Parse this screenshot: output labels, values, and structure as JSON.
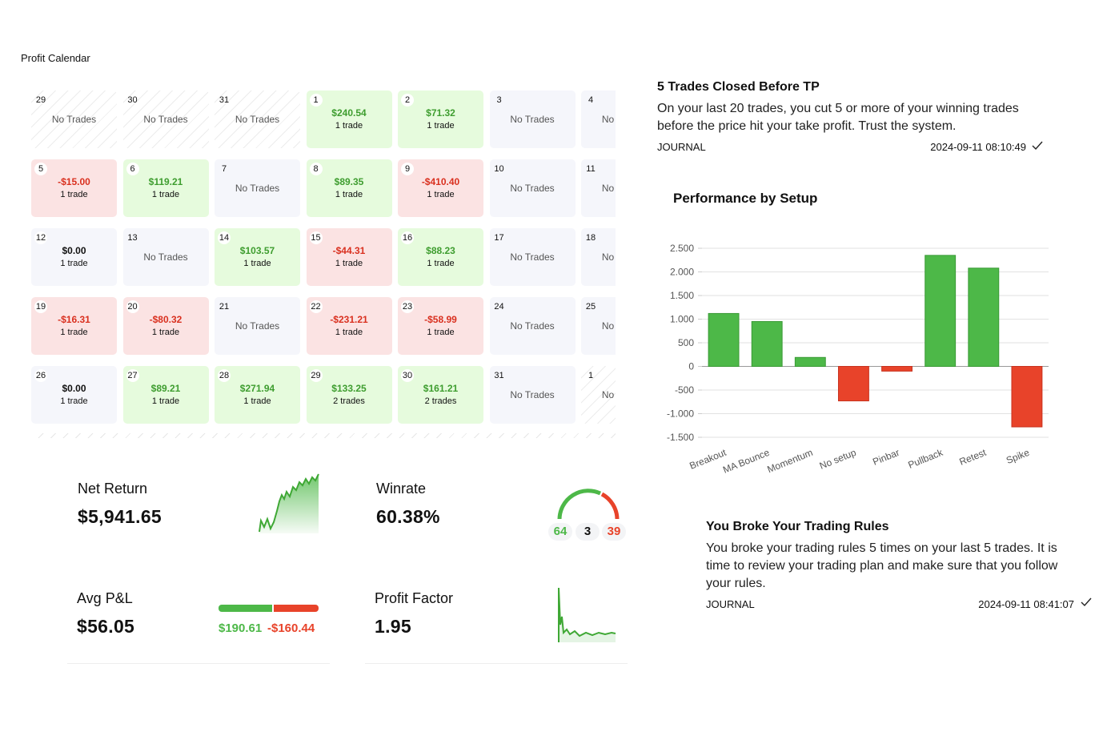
{
  "page_title": "Profit Calendar",
  "calendar": {
    "weeks": [
      [
        {
          "day": 29,
          "status": "outside",
          "text": "No Trades"
        },
        {
          "day": 30,
          "status": "outside",
          "text": "No Trades"
        },
        {
          "day": 31,
          "status": "outside",
          "text": "No Trades"
        },
        {
          "day": 1,
          "status": "win",
          "pnl": "$240.54",
          "trades": "1 trade"
        },
        {
          "day": 2,
          "status": "win",
          "pnl": "$71.32",
          "trades": "1 trade"
        },
        {
          "day": 3,
          "status": "none",
          "text": "No Trades"
        },
        {
          "day": 4,
          "status": "none",
          "text": "No Trades"
        }
      ],
      [
        {
          "day": 5,
          "status": "loss",
          "pnl": "-$15.00",
          "trades": "1 trade"
        },
        {
          "day": 6,
          "status": "win",
          "pnl": "$119.21",
          "trades": "1 trade"
        },
        {
          "day": 7,
          "status": "none",
          "text": "No Trades"
        },
        {
          "day": 8,
          "status": "win",
          "pnl": "$89.35",
          "trades": "1 trade"
        },
        {
          "day": 9,
          "status": "loss",
          "pnl": "-$410.40",
          "trades": "1 trade"
        },
        {
          "day": 10,
          "status": "none",
          "text": "No Trades"
        },
        {
          "day": 11,
          "status": "none",
          "text": "No Trades"
        }
      ],
      [
        {
          "day": 12,
          "status": "flat",
          "pnl": "$0.00",
          "trades": "1 trade"
        },
        {
          "day": 13,
          "status": "none",
          "text": "No Trades"
        },
        {
          "day": 14,
          "status": "win",
          "pnl": "$103.57",
          "trades": "1 trade"
        },
        {
          "day": 15,
          "status": "loss",
          "pnl": "-$44.31",
          "trades": "1 trade"
        },
        {
          "day": 16,
          "status": "win",
          "pnl": "$88.23",
          "trades": "1 trade"
        },
        {
          "day": 17,
          "status": "none",
          "text": "No Trades"
        },
        {
          "day": 18,
          "status": "none",
          "text": "No Trades"
        }
      ],
      [
        {
          "day": 19,
          "status": "loss",
          "pnl": "-$16.31",
          "trades": "1 trade"
        },
        {
          "day": 20,
          "status": "loss",
          "pnl": "-$80.32",
          "trades": "1 trade"
        },
        {
          "day": 21,
          "status": "none",
          "text": "No Trades"
        },
        {
          "day": 22,
          "status": "loss",
          "pnl": "-$231.21",
          "trades": "1 trade"
        },
        {
          "day": 23,
          "status": "loss",
          "pnl": "-$58.99",
          "trades": "1 trade"
        },
        {
          "day": 24,
          "status": "none",
          "text": "No Trades"
        },
        {
          "day": 25,
          "status": "none",
          "text": "No Trades"
        }
      ],
      [
        {
          "day": 26,
          "status": "flat",
          "pnl": "$0.00",
          "trades": "1 trade"
        },
        {
          "day": 27,
          "status": "win",
          "pnl": "$89.21",
          "trades": "1 trade"
        },
        {
          "day": 28,
          "status": "win",
          "pnl": "$271.94",
          "trades": "1 trade"
        },
        {
          "day": 29,
          "status": "win",
          "pnl": "$133.25",
          "trades": "2 trades"
        },
        {
          "day": 30,
          "status": "win",
          "pnl": "$161.21",
          "trades": "2 trades"
        },
        {
          "day": 31,
          "status": "none",
          "text": "No Trades"
        },
        {
          "day": 1,
          "status": "outside",
          "text": "No Trades"
        }
      ]
    ]
  },
  "stats": {
    "net_return": {
      "label": "Net Return",
      "value": "$5,941.65"
    },
    "winrate": {
      "label": "Winrate",
      "value": "60.38%",
      "wins": "64",
      "breakeven": "3",
      "losses": "39"
    },
    "avg_pnl": {
      "label": "Avg P&L",
      "value": "$56.05",
      "avg_win": "$190.61",
      "avg_loss": "-$160.44"
    },
    "profit_factor": {
      "label": "Profit Factor",
      "value": "1.95"
    }
  },
  "notes": [
    {
      "title": "5 Trades Closed Before TP",
      "body": "On your last 20 trades, you cut 5 or more of your winning trades before the price hit your take profit. Trust the system.",
      "tag": "JOURNAL",
      "time": "2024-09-11 08:10:49"
    },
    {
      "title": "You Broke Your Trading Rules",
      "body": "You broke your trading rules 5 times on your last 5 trades. It is time to review your trading plan and make sure that you follow your rules.",
      "tag": "JOURNAL",
      "time": "2024-09-11 08:41:07"
    }
  ],
  "chart_data": {
    "type": "bar",
    "title": "Performance by Setup",
    "categories": [
      "Breakout",
      "MA Bounce",
      "Momentum",
      "No setup",
      "Pinbar",
      "Pullback",
      "Retest",
      "Spike"
    ],
    "values": [
      1120,
      950,
      190,
      -730,
      -100,
      2350,
      2080,
      -1280
    ],
    "positive_color": "#4db848",
    "negative_color": "#e8432a",
    "ylim": [
      -1500,
      2500
    ],
    "yticks": [
      -1500,
      -1000,
      -500,
      0,
      500,
      1000,
      1500,
      2000,
      2500
    ],
    "ytick_labels": [
      "-1.500",
      "-1.000",
      "-500",
      "0",
      "500",
      "1.000",
      "1.500",
      "2.000",
      "2.500"
    ],
    "grid": true
  }
}
